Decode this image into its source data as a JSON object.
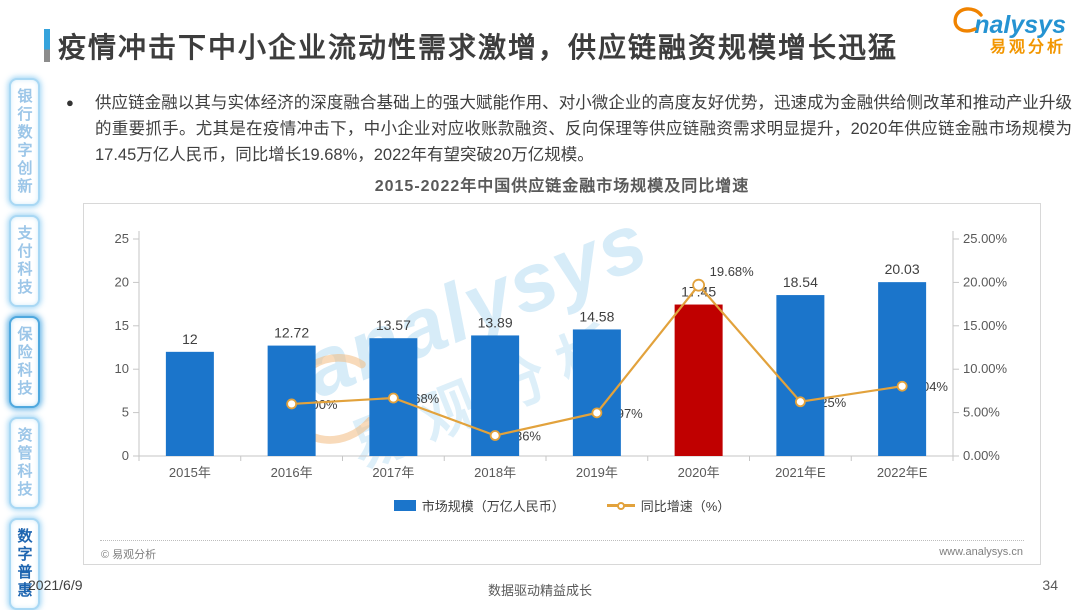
{
  "page": {
    "date": "2021/6/9",
    "footer_slogan": "数据驱动精益成长",
    "page_number": "34"
  },
  "sidebar": {
    "items": [
      {
        "label": "银行数字创新"
      },
      {
        "label": "支付科技"
      },
      {
        "label": "保险科技"
      },
      {
        "label": "资管科技"
      },
      {
        "label": "数字普惠"
      }
    ]
  },
  "header": {
    "title": "疫情冲击下中小企业流动性需求激增，供应链融资规模增长迅猛",
    "logo": {
      "latin": "nalysys",
      "cn": "易观分析"
    }
  },
  "summary": {
    "bullet": "供应链金融以其与实体经济的深度融合基础上的强大赋能作用、对小微企业的高度友好优势，迅速成为金融供给侧改革和推动产业升级的重要抓手。尤其是在疫情冲击下，中小企业对应收账款融资、反向保理等供应链融资需求明显提升，2020年供应链金融市场规模为17.45万亿人民币，同比增长19.68%，2022年有望突破20万亿规模。"
  },
  "chart": {
    "copyright": "© 易观分析",
    "website": "www.analysys.cn",
    "watermark": {
      "latin": "analysys",
      "cn": "易观分析"
    }
  },
  "chart_data": {
    "type": "bar",
    "subtype": "bar+line combo, dual axis",
    "title": "2015-2022年中国供应链金融市场规模及同比增速",
    "categories": [
      "2015年",
      "2016年",
      "2017年",
      "2018年",
      "2019年",
      "2020年",
      "2021年E",
      "2022年E"
    ],
    "series": [
      {
        "name": "市场规模（万亿人民币）",
        "type": "bar",
        "axis": "left",
        "values": [
          12,
          12.72,
          13.57,
          13.89,
          14.58,
          17.45,
          18.54,
          20.03
        ],
        "labels": [
          "12",
          "12.72",
          "13.57",
          "13.89",
          "14.58",
          "17.45",
          "18.54",
          "20.03"
        ],
        "highlight_index": 5
      },
      {
        "name": "同比增速（%）",
        "type": "line",
        "axis": "right",
        "values": [
          null,
          6.0,
          6.68,
          2.36,
          4.97,
          19.68,
          6.25,
          8.04
        ],
        "labels": [
          null,
          "6.00%",
          "6.68%",
          "2.36%",
          "4.97%",
          "19.68%",
          "6.25%",
          "8.04%"
        ]
      }
    ],
    "left_axis": {
      "min": 0,
      "max": 25,
      "step": 5,
      "tick_labels": [
        "0",
        "5",
        "10",
        "15",
        "20",
        "25"
      ]
    },
    "right_axis": {
      "min": 0,
      "max": 25,
      "step": 5,
      "tick_labels": [
        "0.00%",
        "5.00%",
        "10.00%",
        "15.00%",
        "20.00%",
        "25.00%"
      ]
    },
    "colors": {
      "bar": "#1b75cb",
      "bar_highlight": "#c00000",
      "line": "#e2a23c"
    },
    "legend_position": "bottom",
    "grid": false
  }
}
